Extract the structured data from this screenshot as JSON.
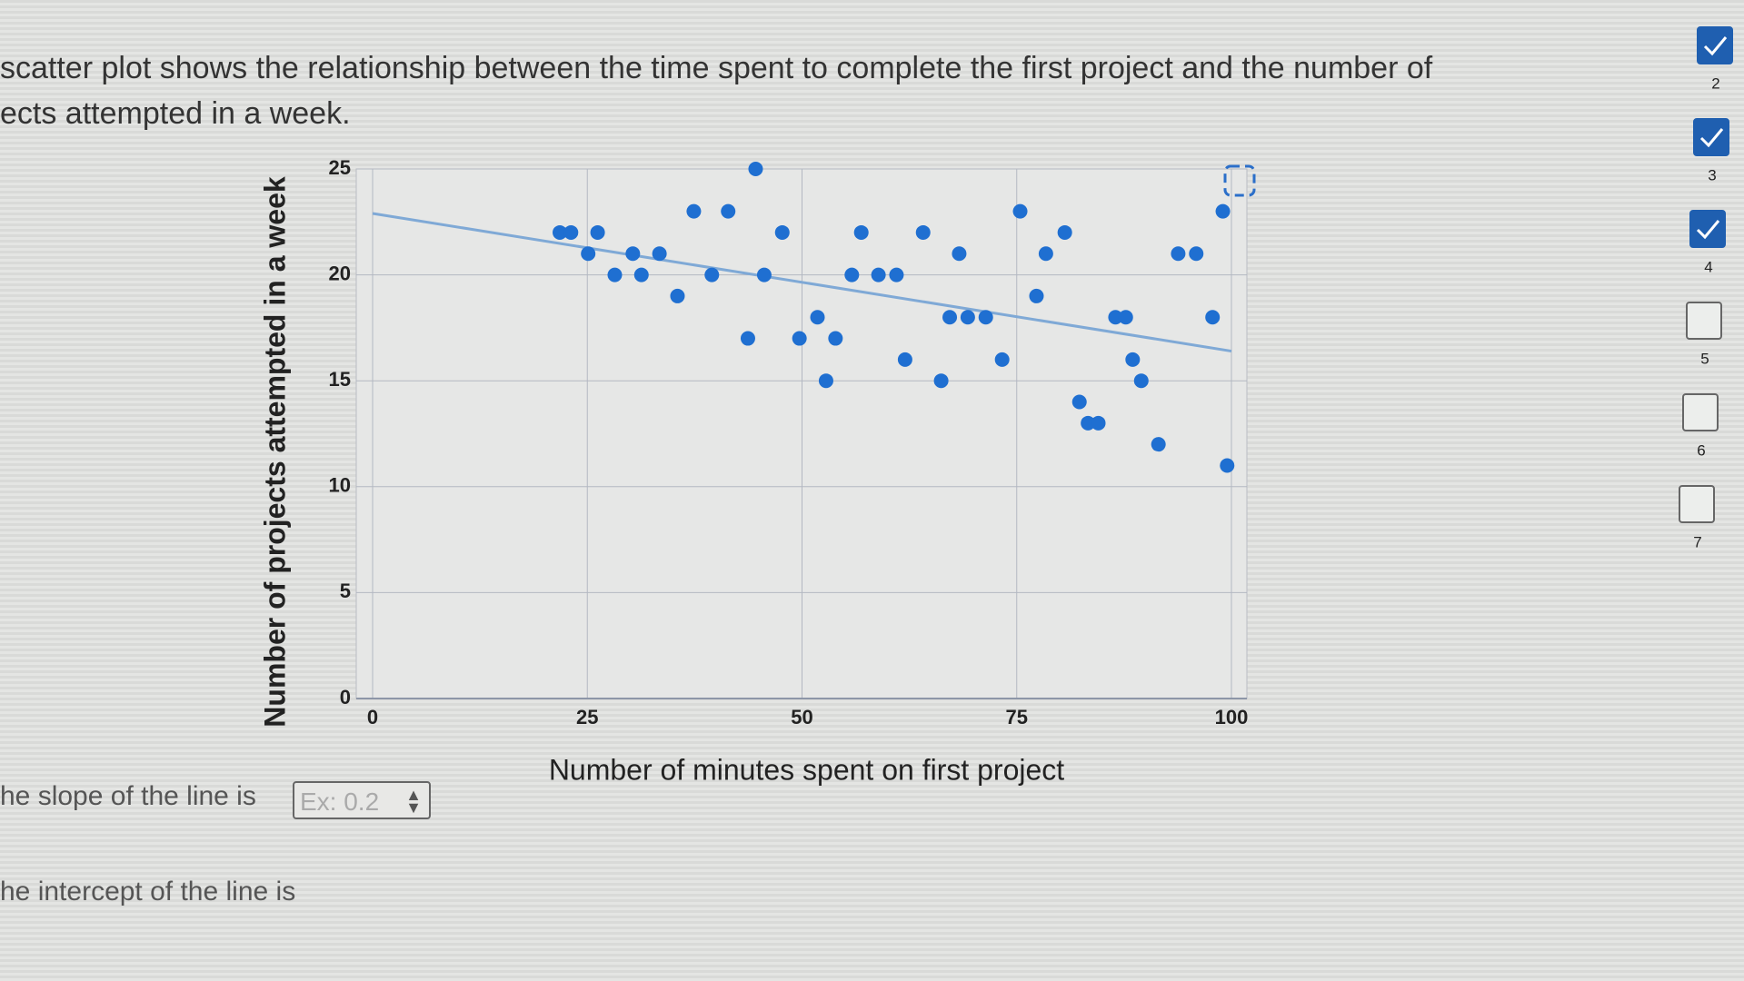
{
  "question": [
    "scatter plot shows the relationship between the time spent to complete the first project and the number of",
    "ects attempted in a week."
  ],
  "chart_data": {
    "type": "scatter",
    "x_label": "Number of minutes spent on first project",
    "y_label": "Number of projects attempted in a week",
    "x": [
      44.6,
      37.4,
      41.4,
      75.4,
      99,
      21.8,
      23.1,
      26.2,
      47.7,
      56.9,
      64.1,
      80.6,
      25.1,
      30.3,
      33.4,
      68.3,
      78.4,
      93.8,
      95.9,
      28.2,
      31.3,
      39.5,
      45.6,
      55.8,
      58.9,
      61,
      35.5,
      77.3,
      51.8,
      67.2,
      69.3,
      71.4,
      86.5,
      87.7,
      97.8,
      43.7,
      49.7,
      53.9,
      62,
      73.3,
      88.5,
      52.8,
      66.2,
      89.5,
      82.3,
      83.3,
      84.5,
      91.5,
      99.5
    ],
    "values": [
      25,
      23,
      23,
      23,
      23,
      22,
      22,
      22,
      22,
      22,
      22,
      22,
      21,
      21,
      21,
      21,
      21,
      21,
      21,
      20,
      20,
      20,
      20,
      20,
      20,
      20,
      19,
      19,
      18,
      18,
      18,
      18,
      18,
      18,
      18,
      17,
      17,
      17,
      16,
      16,
      16,
      15,
      15,
      15,
      14,
      13,
      13,
      12,
      11
    ],
    "color": "#1f6fd1",
    "trendline": {
      "x": [
        0,
        100
      ],
      "values": [
        22.9,
        16.4
      ],
      "color": "#7fa9d6"
    },
    "xlim": [
      0,
      100
    ],
    "xticks": [
      0,
      25,
      50,
      75,
      100
    ],
    "ylim": [
      0,
      25
    ],
    "yticks": [
      0,
      5,
      10,
      15,
      20,
      25
    ],
    "grid": true
  },
  "slope": {
    "label": "he slope of the line is",
    "placeholder": "Ex: 0.2"
  },
  "intercept": {
    "label": "he intercept of the line is"
  },
  "sidebar": [
    {
      "number": "2",
      "checked": true
    },
    {
      "number": "3",
      "checked": true
    },
    {
      "number": "4",
      "checked": true
    },
    {
      "number": "5",
      "checked": false
    },
    {
      "number": "6",
      "checked": false
    },
    {
      "number": "7",
      "checked": false
    }
  ]
}
